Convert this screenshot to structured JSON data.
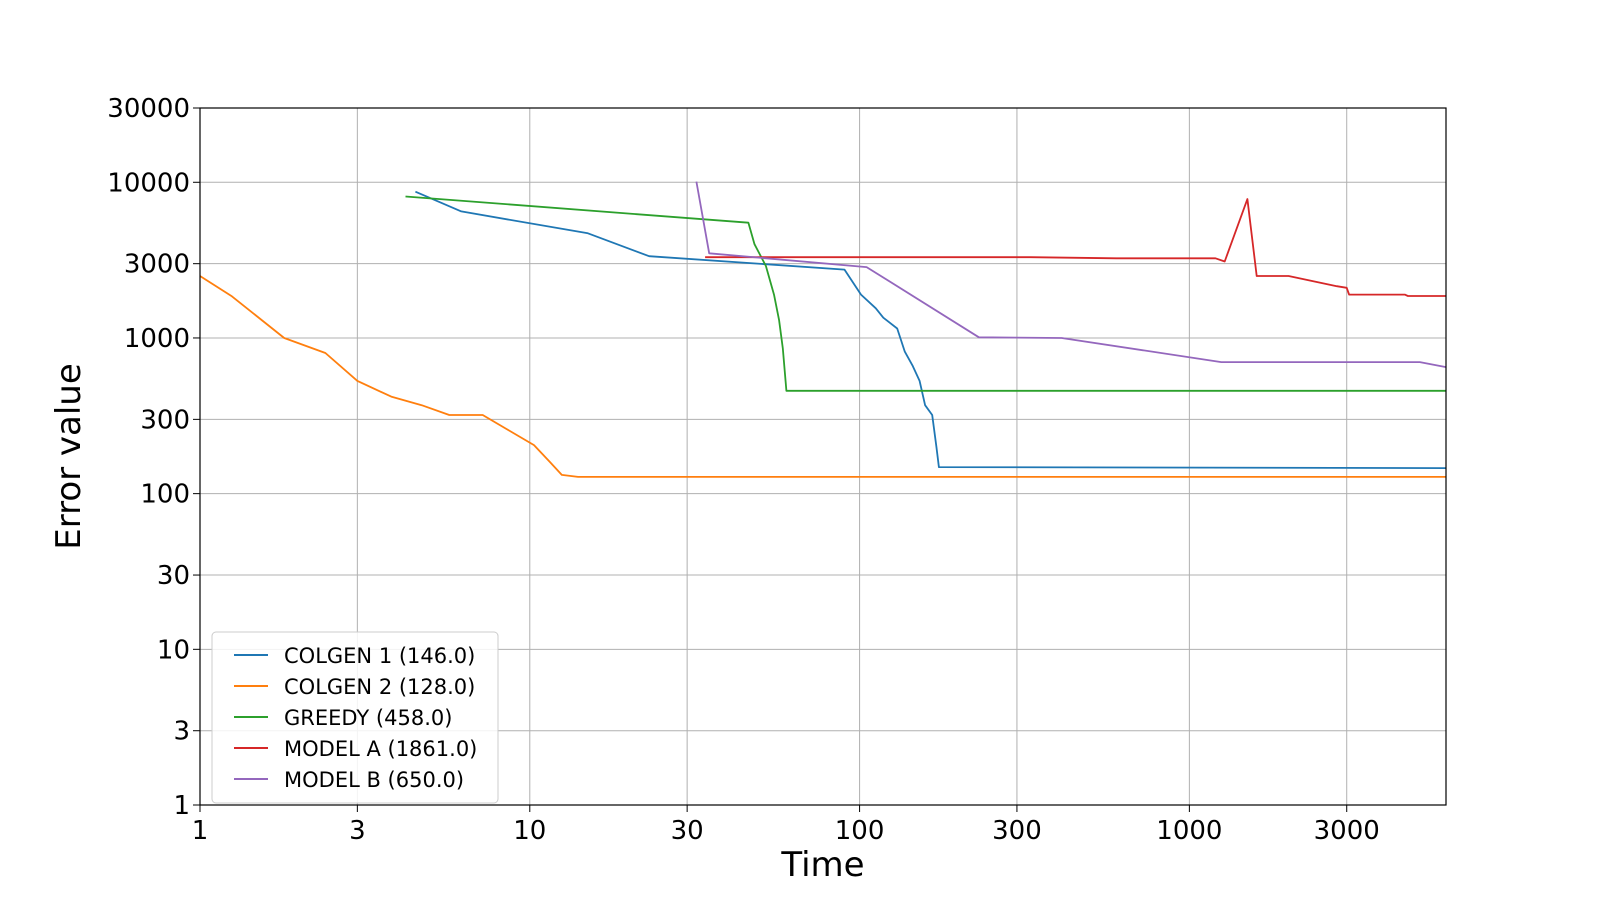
{
  "chart_data": {
    "type": "line",
    "xlabel": "Time",
    "ylabel": "Error value",
    "xscale": "log",
    "yscale": "log",
    "xlim": [
      1,
      6000
    ],
    "ylim": [
      1,
      30000
    ],
    "grid": true,
    "legend_position": "bottom-left",
    "x_ticks": [
      1,
      3,
      10,
      30,
      100,
      300,
      1000,
      3000
    ],
    "x_tick_labels": [
      "1",
      "3",
      "10",
      "30",
      "100",
      "300",
      "1000",
      "3000"
    ],
    "y_ticks": [
      1,
      3,
      10,
      30,
      100,
      300,
      1000,
      3000,
      10000,
      30000
    ],
    "y_tick_labels": [
      "1",
      "3",
      "10",
      "30",
      "100",
      "300",
      "1000",
      "3000",
      "10000",
      "30000"
    ],
    "series": [
      {
        "name": "COLGEN 1 (146.0)",
        "color": "#1f77b4",
        "points": [
          [
            4.5,
            8700
          ],
          [
            6.2,
            6500
          ],
          [
            15.0,
            4700
          ],
          [
            23.0,
            3350
          ],
          [
            90.0,
            2750
          ],
          [
            101.0,
            1900
          ],
          [
            112.0,
            1550
          ],
          [
            118.0,
            1350
          ],
          [
            130.0,
            1150
          ],
          [
            137.0,
            820
          ],
          [
            145.0,
            660
          ],
          [
            152.0,
            530
          ],
          [
            158.0,
            370
          ],
          [
            166.0,
            320
          ],
          [
            171.0,
            200
          ],
          [
            174.0,
            148
          ],
          [
            6000,
            146
          ]
        ]
      },
      {
        "name": "COLGEN 2 (128.0)",
        "color": "#ff7f0e",
        "points": [
          [
            1.0,
            2500
          ],
          [
            1.25,
            1850
          ],
          [
            1.8,
            1000
          ],
          [
            2.4,
            800
          ],
          [
            3.0,
            530
          ],
          [
            3.8,
            420
          ],
          [
            4.7,
            370
          ],
          [
            5.7,
            320
          ],
          [
            7.2,
            320
          ],
          [
            8.5,
            260
          ],
          [
            10.3,
            205
          ],
          [
            11.5,
            160
          ],
          [
            12.5,
            132
          ],
          [
            14.0,
            128
          ],
          [
            6000,
            128
          ]
        ]
      },
      {
        "name": "GREEDY (458.0)",
        "color": "#2ca02c",
        "points": [
          [
            4.2,
            8100
          ],
          [
            46.0,
            5500
          ],
          [
            48.0,
            4000
          ],
          [
            52.0,
            2900
          ],
          [
            55.0,
            1900
          ],
          [
            57.0,
            1300
          ],
          [
            58.5,
            860
          ],
          [
            60.0,
            458
          ],
          [
            6000,
            458
          ]
        ]
      },
      {
        "name": "MODEL A (1861.0)",
        "color": "#d62728",
        "points": [
          [
            34.0,
            3300
          ],
          [
            100.0,
            3300
          ],
          [
            330.0,
            3300
          ],
          [
            600.0,
            3250
          ],
          [
            1200.0,
            3250
          ],
          [
            1280.0,
            3100
          ],
          [
            1500.0,
            7800
          ],
          [
            1600.0,
            2500
          ],
          [
            2000.0,
            2500
          ],
          [
            2800.0,
            2150
          ],
          [
            3000.0,
            2100
          ],
          [
            3050.0,
            1900
          ],
          [
            4500.0,
            1900
          ],
          [
            4600.0,
            1861
          ],
          [
            5500.0,
            1861
          ],
          [
            5600.0,
            1861
          ],
          [
            6000,
            1861
          ]
        ]
      },
      {
        "name": "MODEL B (650.0)",
        "color": "#9467bd",
        "points": [
          [
            32.0,
            10100
          ],
          [
            35.0,
            3500
          ],
          [
            105.0,
            2850
          ],
          [
            230.0,
            1010
          ],
          [
            410.0,
            1000
          ],
          [
            1250.0,
            700
          ],
          [
            5000.0,
            700
          ],
          [
            6000,
            650
          ]
        ]
      }
    ]
  }
}
